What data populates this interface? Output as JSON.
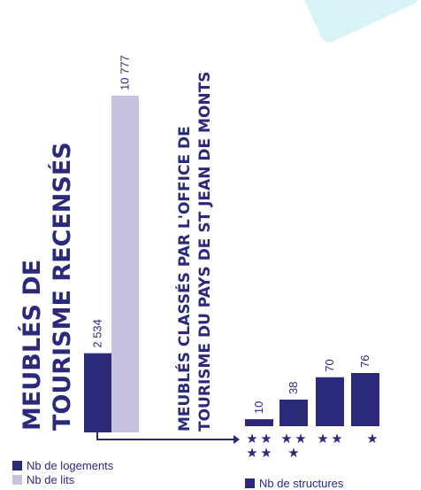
{
  "colors": {
    "logements": "#2b2a7a",
    "lits": "#c5c3e0",
    "structures": "#2b2a7a",
    "accent_teal": "#d9f4f6"
  },
  "chart_data": [
    {
      "type": "bar",
      "title": "MEUBLÉS DE TOURISME RECENSÉS",
      "title_lines": [
        "MEUBLÉS DE",
        "TOURISME RECENSÉS"
      ],
      "series": [
        {
          "name": "Nb de logements",
          "value": 2534,
          "label": "2 534"
        },
        {
          "name": "Nb de lits",
          "value": 10777,
          "label": "10 777"
        }
      ],
      "legend": [
        "Nb de logements",
        "Nb de lits"
      ]
    },
    {
      "type": "bar",
      "title": "MEUBLÉS CLASSÉS PAR L'OFFICE DE TOURISME DU PAYS DE ST JEAN DE MONTS",
      "title_lines": [
        "MEUBLÉS CLASSÉS PAR L'OFFICE DE",
        "TOURISME DU PAYS DE ST JEAN DE MONTS"
      ],
      "categories": [
        "4 étoiles",
        "3 étoiles",
        "2 étoiles",
        "1 étoile"
      ],
      "stars": [
        4,
        3,
        2,
        1
      ],
      "values": [
        10,
        38,
        70,
        76
      ],
      "labels": [
        "10",
        "38",
        "70",
        "76"
      ],
      "series_name": "Nb de structures",
      "legend": [
        "Nb de structures"
      ]
    }
  ]
}
